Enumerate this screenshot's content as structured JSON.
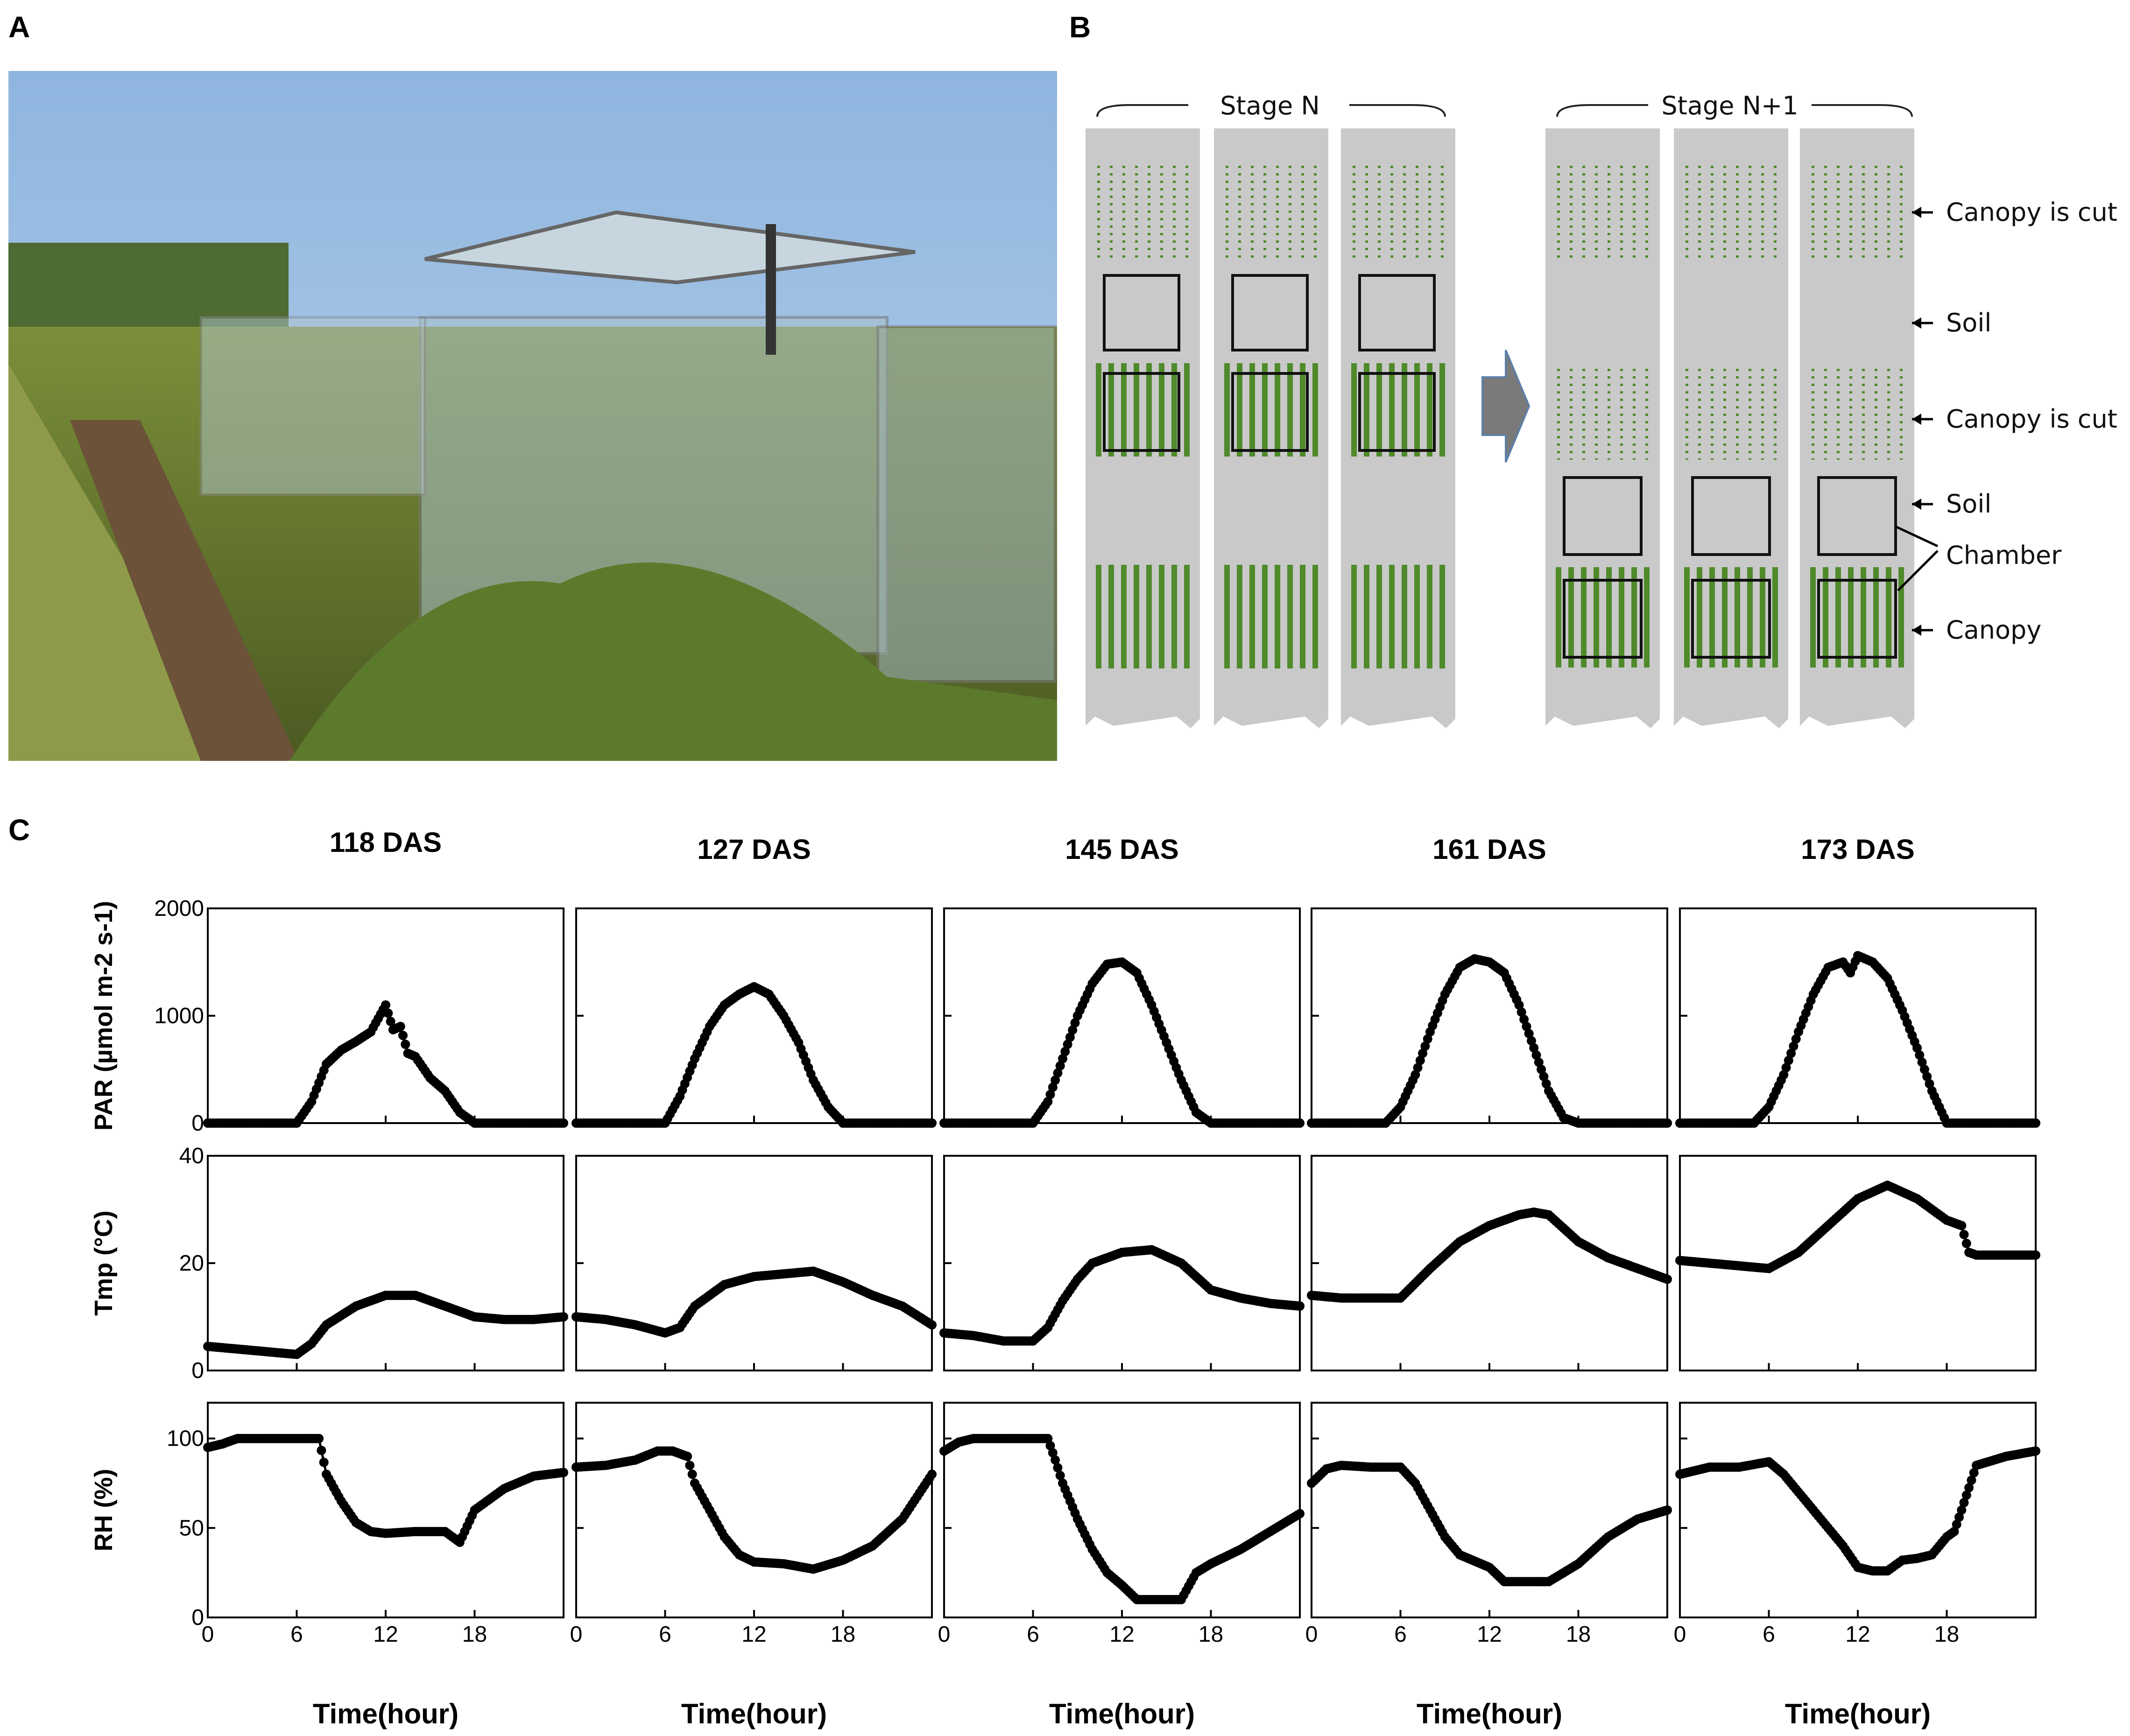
{
  "panel_labels": {
    "a": "A",
    "b": "B",
    "c": "C"
  },
  "photo": {
    "description_icon": "field-photo-chambers"
  },
  "diagram": {
    "stage_n_label": "Stage N",
    "stage_n1_label": "Stage N+1",
    "arrow_icon": "right-arrow-icon",
    "annotations": [
      "Canopy is cut",
      "Soil",
      "Canopy is cut",
      "Soil",
      "Chamber",
      "Canopy"
    ],
    "colors": {
      "strip": "#c9c9c9",
      "plant": "#4f8a2b",
      "arrow": "#7a7a7a"
    }
  },
  "chart_data": [
    {
      "type": "line",
      "title": "118 DAS",
      "xlabel": "Time(hour)",
      "xlim": [
        0,
        24
      ],
      "xticks": [
        0,
        6,
        12,
        18
      ],
      "panels": [
        {
          "ylabel": "PAR (µmol m-2 s-1)",
          "ylim": [
            0,
            2000
          ],
          "yticks": [
            0,
            1000,
            2000
          ],
          "x": [
            0,
            6,
            7,
            8,
            9,
            10,
            11,
            12,
            12.5,
            13,
            13.5,
            14,
            15,
            16,
            17,
            18,
            24
          ],
          "values": [
            0,
            0,
            200,
            550,
            680,
            760,
            850,
            1100,
            870,
            900,
            650,
            620,
            420,
            300,
            100,
            0,
            0
          ]
        },
        {
          "ylabel": "Tmp (°C)",
          "ylim": [
            0,
            40
          ],
          "yticks": [
            0,
            20,
            40
          ],
          "x": [
            0,
            2,
            4,
            6,
            7,
            8,
            10,
            12,
            14,
            16,
            18,
            20,
            22,
            24
          ],
          "values": [
            4.5,
            4,
            3.5,
            3,
            5,
            8.5,
            12,
            14,
            14,
            12,
            10,
            9.5,
            9.5,
            10
          ]
        },
        {
          "ylabel": "RH (%)",
          "ylim": [
            0,
            120
          ],
          "yticks": [
            0,
            50,
            100
          ],
          "x": [
            0,
            1,
            2,
            4,
            6,
            7.5,
            8,
            9,
            10,
            11,
            12,
            14,
            16,
            17,
            18,
            20,
            22,
            24
          ],
          "values": [
            95,
            97,
            100,
            100,
            100,
            100,
            80,
            65,
            53,
            48,
            47,
            48,
            48,
            42,
            60,
            72,
            79,
            81
          ]
        }
      ]
    },
    {
      "type": "line",
      "title": "127 DAS",
      "xlabel": "Time(hour)",
      "xlim": [
        0,
        24
      ],
      "xticks": [
        0,
        6,
        12,
        18
      ],
      "panels": [
        {
          "ylabel": "PAR (µmol m-2 s-1)",
          "ylim": [
            0,
            2000
          ],
          "yticks": [
            0,
            1000,
            2000
          ],
          "x": [
            0,
            6,
            7,
            8,
            9,
            10,
            11,
            12,
            13,
            14,
            15,
            16,
            17,
            18,
            24
          ],
          "values": [
            0,
            0,
            250,
            600,
            900,
            1100,
            1200,
            1270,
            1200,
            1000,
            750,
            400,
            150,
            0,
            0
          ]
        },
        {
          "ylabel": "Tmp (°C)",
          "ylim": [
            0,
            40
          ],
          "yticks": [
            0,
            20,
            40
          ],
          "x": [
            0,
            2,
            4,
            6,
            7,
            8,
            10,
            12,
            14,
            16,
            18,
            20,
            22,
            24
          ],
          "values": [
            10,
            9.5,
            8.5,
            7,
            8,
            12,
            16,
            17.5,
            18,
            18.5,
            16.5,
            14,
            12,
            8.5
          ]
        },
        {
          "ylabel": "RH (%)",
          "ylim": [
            0,
            120
          ],
          "yticks": [
            0,
            50,
            100
          ],
          "x": [
            0,
            2,
            4,
            5.5,
            6.5,
            7.5,
            8,
            9,
            10,
            11,
            12,
            14,
            16,
            18,
            20,
            22,
            24
          ],
          "values": [
            84,
            85,
            88,
            93,
            93,
            90,
            75,
            60,
            45,
            35,
            31,
            30,
            27,
            32,
            40,
            55,
            80
          ]
        }
      ]
    },
    {
      "type": "line",
      "title": "145 DAS",
      "xlabel": "Time(hour)",
      "xlim": [
        0,
        24
      ],
      "xticks": [
        0,
        6,
        12,
        18
      ],
      "panels": [
        {
          "ylabel": "PAR (µmol m-2 s-1)",
          "ylim": [
            0,
            2000
          ],
          "yticks": [
            0,
            1000,
            2000
          ],
          "x": [
            0,
            6,
            7,
            8,
            9,
            10,
            11,
            12,
            13,
            14,
            15,
            16,
            17,
            18,
            24
          ],
          "values": [
            0,
            0,
            200,
            600,
            1000,
            1300,
            1480,
            1500,
            1400,
            1100,
            750,
            400,
            100,
            0,
            0
          ]
        },
        {
          "ylabel": "Tmp (°C)",
          "ylim": [
            0,
            40
          ],
          "yticks": [
            0,
            20,
            40
          ],
          "x": [
            0,
            2,
            4,
            6,
            7,
            8,
            9,
            10,
            12,
            14,
            16,
            18,
            20,
            22,
            24
          ],
          "values": [
            7,
            6.5,
            5.5,
            5.5,
            8,
            13,
            17,
            20,
            22,
            22.5,
            20,
            15,
            13.5,
            12.5,
            12
          ]
        },
        {
          "ylabel": "RH (%)",
          "ylim": [
            0,
            120
          ],
          "yticks": [
            0,
            50,
            100
          ],
          "x": [
            0,
            1,
            2,
            4,
            6,
            7,
            7.5,
            8,
            9,
            10,
            11,
            12,
            13,
            14,
            15,
            16,
            17,
            18,
            20,
            22,
            24
          ],
          "values": [
            93,
            98,
            100,
            100,
            100,
            100,
            88,
            75,
            55,
            38,
            25,
            18,
            10,
            10,
            10,
            10,
            25,
            30,
            38,
            48,
            58
          ]
        }
      ]
    },
    {
      "type": "line",
      "title": "161 DAS",
      "xlabel": "Time(hour)",
      "xlim": [
        0,
        24
      ],
      "xticks": [
        0,
        6,
        12,
        18
      ],
      "panels": [
        {
          "ylabel": "PAR (µmol m-2 s-1)",
          "ylim": [
            0,
            2000
          ],
          "yticks": [
            0,
            1000,
            2000
          ],
          "x": [
            0,
            5,
            6,
            7,
            8,
            9,
            10,
            11,
            12,
            13,
            14,
            15,
            16,
            17,
            18,
            24
          ],
          "values": [
            0,
            0,
            150,
            450,
            850,
            1200,
            1450,
            1530,
            1500,
            1400,
            1100,
            700,
            300,
            50,
            0,
            0
          ]
        },
        {
          "ylabel": "Tmp (°C)",
          "ylim": [
            0,
            40
          ],
          "yticks": [
            0,
            20,
            40
          ],
          "x": [
            0,
            2,
            4,
            6,
            8,
            10,
            12,
            14,
            15,
            16,
            18,
            20,
            22,
            24
          ],
          "values": [
            14,
            13.5,
            13.5,
            13.5,
            19,
            24,
            27,
            29,
            29.5,
            29,
            24,
            21,
            19,
            17
          ]
        },
        {
          "ylabel": "RH (%)",
          "ylim": [
            0,
            120
          ],
          "yticks": [
            0,
            50,
            100
          ],
          "x": [
            0,
            1,
            2,
            4,
            6,
            7,
            8,
            9,
            10,
            12,
            13,
            14,
            15,
            16,
            17,
            18,
            20,
            22,
            24
          ],
          "values": [
            75,
            83,
            85,
            84,
            84,
            75,
            60,
            45,
            35,
            28,
            20,
            20,
            20,
            20,
            25,
            30,
            45,
            55,
            60
          ]
        }
      ]
    },
    {
      "type": "line",
      "title": "173 DAS",
      "xlabel": "Time(hour)",
      "xlim": [
        0,
        24
      ],
      "xticks": [
        0,
        6,
        12,
        18
      ],
      "panels": [
        {
          "ylabel": "PAR (µmol m-2 s-1)",
          "ylim": [
            0,
            2000
          ],
          "yticks": [
            0,
            1000,
            2000
          ],
          "x": [
            0,
            5,
            6,
            7,
            8,
            9,
            10,
            11,
            11.5,
            12,
            13,
            14,
            15,
            16,
            17,
            18,
            24
          ],
          "values": [
            0,
            0,
            150,
            450,
            850,
            1200,
            1450,
            1500,
            1400,
            1560,
            1500,
            1350,
            1050,
            700,
            300,
            0,
            0
          ]
        },
        {
          "ylabel": "Tmp (°C)",
          "ylim": [
            0,
            40
          ],
          "yticks": [
            0,
            20,
            40
          ],
          "x": [
            0,
            2,
            4,
            6,
            8,
            10,
            12,
            14,
            16,
            17,
            18,
            19,
            19.5,
            20,
            22,
            24
          ],
          "values": [
            20.5,
            20,
            19.5,
            19,
            22,
            27,
            32,
            34.5,
            32,
            30,
            28,
            27,
            22,
            21.5,
            21.5,
            21.5
          ]
        },
        {
          "ylabel": "RH (%)",
          "ylim": [
            0,
            120
          ],
          "yticks": [
            0,
            50,
            100
          ],
          "x": [
            0,
            2,
            4,
            6,
            7,
            8,
            9,
            10,
            11,
            12,
            13,
            14,
            15,
            16,
            17,
            18,
            18.5,
            19,
            20,
            22,
            24
          ],
          "values": [
            80,
            84,
            84,
            87,
            80,
            70,
            60,
            50,
            40,
            28,
            26,
            26,
            32,
            33,
            35,
            45,
            48,
            60,
            85,
            90,
            93
          ]
        }
      ]
    }
  ]
}
